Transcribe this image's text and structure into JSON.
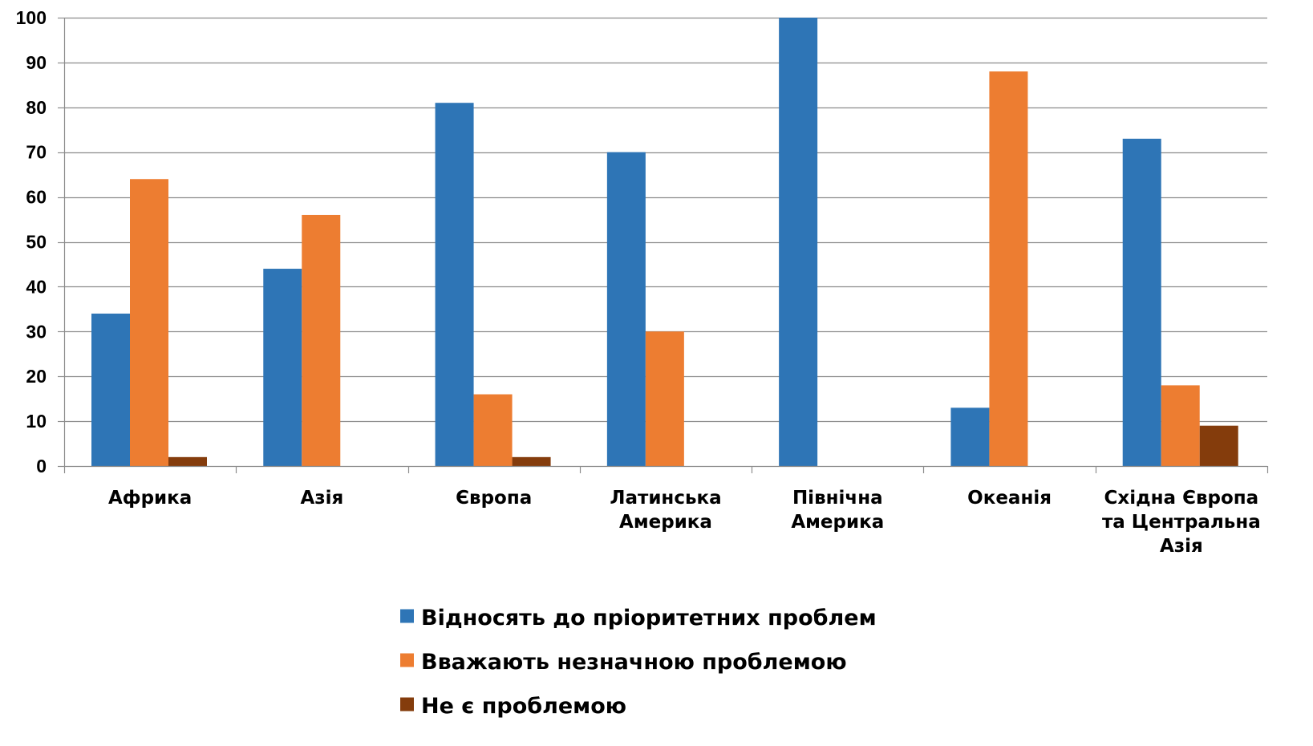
{
  "chart_data": {
    "type": "bar",
    "categories": [
      [
        "Африка"
      ],
      [
        "Азія"
      ],
      [
        "Європа"
      ],
      [
        "Латинська",
        "Америка"
      ],
      [
        "Північна",
        "Америка"
      ],
      [
        "Океанія"
      ],
      [
        "Східна Європа",
        "та Центральна",
        "Азія"
      ]
    ],
    "series": [
      {
        "name": "Відносять до пріоритетних проблем",
        "color": "#2E75B6",
        "values": [
          34,
          44,
          81,
          70,
          100,
          13,
          73
        ]
      },
      {
        "name": "Вважають незначною проблемою",
        "color": "#ED7D31",
        "values": [
          64,
          56,
          16,
          30,
          0,
          88,
          18
        ]
      },
      {
        "name": "Не є проблемою",
        "color": "#843C0C",
        "values": [
          2,
          0,
          2,
          0,
          0,
          0,
          9
        ]
      }
    ],
    "ylim": [
      0,
      100
    ],
    "yticks": [
      0,
      10,
      20,
      30,
      40,
      50,
      60,
      70,
      80,
      90,
      100
    ],
    "grid": true,
    "legend_position": "bottom"
  }
}
